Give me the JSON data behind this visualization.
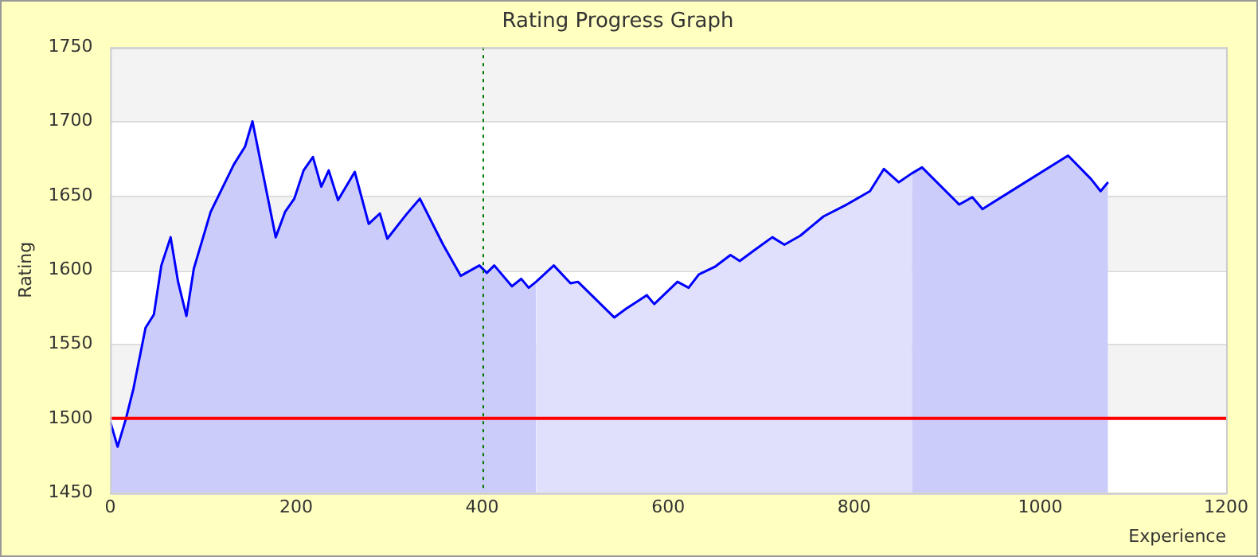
{
  "chart_data": {
    "type": "area",
    "title": "Rating Progress Graph",
    "xlabel": "Experience",
    "ylabel": "Rating",
    "xlim": [
      0,
      1200
    ],
    "xticks": [
      0,
      200,
      400,
      600,
      800,
      1000,
      1200
    ],
    "ylim": [
      1450,
      1750
    ],
    "yticks": [
      1450,
      1500,
      1550,
      1600,
      1650,
      1700,
      1750
    ],
    "grid": "y",
    "legend": false,
    "marker": "none",
    "ref_lines": [
      {
        "axis": "y",
        "value": 1500,
        "color": "#ff0000",
        "line_style": "solid"
      },
      {
        "axis": "x",
        "value": 400,
        "color": "#007700",
        "line_style": "dotted"
      }
    ],
    "series": [
      {
        "color": "#ccccfa",
        "x": [
          0,
          8,
          17,
          25,
          38,
          47,
          55,
          65,
          73,
          82,
          90,
          108,
          133,
          145,
          153,
          178,
          188,
          198,
          208,
          218,
          227,
          235,
          245,
          263,
          278,
          290,
          298,
          318,
          333,
          358,
          377,
          397,
          405,
          413,
          432,
          442,
          450,
          458
        ],
        "values": [
          1498,
          1481,
          1500,
          1520,
          1561,
          1570,
          1603,
          1622,
          1592,
          1569,
          1601,
          1639,
          1671,
          1683,
          1700,
          1622,
          1639,
          1648,
          1667,
          1676,
          1656,
          1667,
          1647,
          1666,
          1631,
          1638,
          1621,
          1637,
          1648,
          1617,
          1596,
          1603,
          1598,
          1603,
          1589,
          1594,
          1588,
          1592
        ]
      },
      {
        "color": "#e0e0fc",
        "x": [
          458,
          477,
          495,
          503,
          542,
          555,
          565,
          577,
          585,
          610,
          622,
          633,
          650,
          667,
          677,
          692,
          712,
          725,
          742,
          767,
          792,
          817,
          832,
          848,
          862
        ],
        "values": [
          1592,
          1603,
          1591,
          1592,
          1568,
          1574,
          1578,
          1583,
          1577,
          1592,
          1588,
          1597,
          1602,
          1610,
          1606,
          1613,
          1622,
          1617,
          1623,
          1636,
          1644,
          1653,
          1668,
          1659,
          1665
        ]
      },
      {
        "color": "#ccccfa",
        "x": [
          862,
          873,
          913,
          927,
          938,
          1030,
          1055,
          1065,
          1073
        ],
        "values": [
          1665,
          1669,
          1644,
          1649,
          1641,
          1677,
          1661,
          1653,
          1659
        ]
      },
      {
        "type": "line",
        "color": "#0000ff",
        "x": [
          0,
          8,
          17,
          25,
          38,
          47,
          55,
          65,
          73,
          82,
          90,
          108,
          133,
          145,
          153,
          178,
          188,
          198,
          208,
          218,
          227,
          235,
          245,
          263,
          278,
          290,
          298,
          318,
          333,
          358,
          377,
          397,
          405,
          413,
          432,
          442,
          450,
          458,
          477,
          495,
          503,
          542,
          555,
          565,
          577,
          585,
          610,
          622,
          633,
          650,
          667,
          677,
          692,
          712,
          725,
          742,
          767,
          792,
          817,
          832,
          848,
          862,
          873,
          913,
          927,
          938,
          1030,
          1055,
          1065,
          1073
        ],
        "values": [
          1498,
          1481,
          1500,
          1520,
          1561,
          1570,
          1603,
          1622,
          1592,
          1569,
          1601,
          1639,
          1671,
          1683,
          1700,
          1622,
          1639,
          1648,
          1667,
          1676,
          1656,
          1667,
          1647,
          1666,
          1631,
          1638,
          1621,
          1637,
          1648,
          1617,
          1596,
          1603,
          1598,
          1603,
          1589,
          1594,
          1588,
          1592,
          1603,
          1591,
          1592,
          1568,
          1574,
          1578,
          1583,
          1577,
          1592,
          1588,
          1597,
          1602,
          1610,
          1606,
          1613,
          1622,
          1617,
          1623,
          1636,
          1644,
          1653,
          1668,
          1659,
          1665,
          1669,
          1644,
          1649,
          1641,
          1677,
          1661,
          1653,
          1659
        ]
      }
    ]
  }
}
